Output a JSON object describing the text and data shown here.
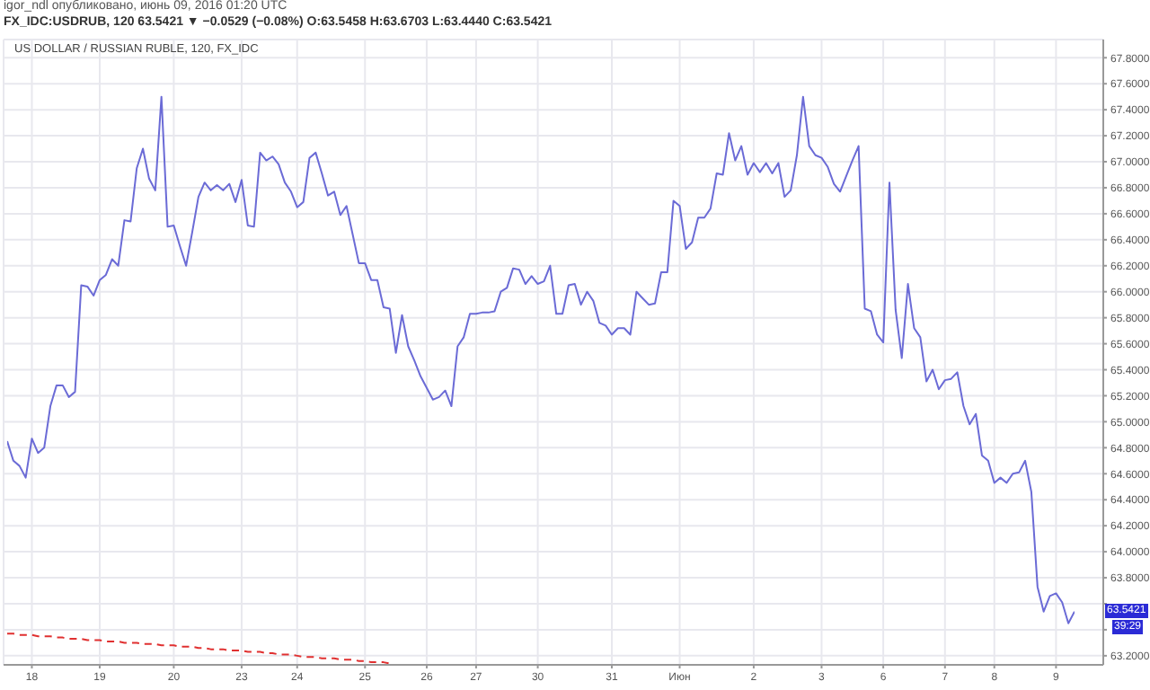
{
  "chart_data": {
    "type": "line",
    "title": "US DOLLAR / RUSSIAN RUBLE, 120, FX_IDC",
    "subtitle": "FX_IDC:USDRUB, 120 63.5421 ▼ −0.0529 (−0.08%) O:63.5458 H:63.6703 L:63.4440 C:63.5421",
    "annotations": [
      "igor_ndl опубликовано, июнь 09, 2016 01:20 UTC",
      "63.5421",
      "39:29"
    ],
    "categories": [
      null,
      null,
      null,
      null,
      "18",
      null,
      null,
      null,
      null,
      null,
      null,
      null,
      null,
      null,
      null,
      "19",
      null,
      null,
      null,
      null,
      null,
      null,
      null,
      null,
      null,
      null,
      null,
      "20",
      null,
      null,
      null,
      null,
      null,
      null,
      null,
      null,
      null,
      null,
      "23",
      null,
      null,
      null,
      null,
      null,
      null,
      null,
      null,
      "24",
      null,
      null,
      null,
      null,
      null,
      null,
      null,
      null,
      null,
      null,
      "25",
      null,
      null,
      null,
      null,
      null,
      null,
      null,
      null,
      null,
      "26",
      null,
      null,
      null,
      null,
      null,
      null,
      null,
      "27",
      null,
      null,
      null,
      null,
      null,
      null,
      null,
      null,
      null,
      "30",
      null,
      null,
      null,
      null,
      null,
      null,
      null,
      null,
      null,
      null,
      null,
      "31",
      null,
      null,
      null,
      null,
      null,
      null,
      null,
      null,
      null,
      null,
      "Июн",
      null,
      null,
      null,
      null,
      null,
      null,
      null,
      null,
      null,
      null,
      null,
      "2",
      null,
      null,
      null,
      null,
      null,
      null,
      null,
      null,
      null,
      null,
      "3",
      null,
      null,
      null,
      null,
      null,
      null,
      null,
      null,
      null,
      "6",
      null,
      null,
      null,
      null,
      null,
      null,
      null,
      null,
      null,
      "7",
      null,
      null,
      null,
      null,
      null,
      null,
      null,
      "8",
      null,
      null,
      null,
      null,
      null,
      null,
      null,
      null,
      null,
      "9",
      null,
      null,
      null
    ],
    "ylim": [
      63.13,
      67.94
    ],
    "yticks": [
      {
        "value": 63.2,
        "label": "63.2000"
      },
      {
        "value": 63.4,
        "label": null
      },
      {
        "value": 63.6,
        "label": null
      },
      {
        "value": 63.8,
        "label": "63.8000"
      },
      {
        "value": 64,
        "label": "64.0000"
      },
      {
        "value": 64.2,
        "label": "64.2000"
      },
      {
        "value": 64.4,
        "label": "64.4000"
      },
      {
        "value": 64.6,
        "label": "64.6000"
      },
      {
        "value": 64.8,
        "label": "64.8000"
      },
      {
        "value": 65,
        "label": "65.0000"
      },
      {
        "value": 65.2,
        "label": "65.2000"
      },
      {
        "value": 65.4,
        "label": "65.4000"
      },
      {
        "value": 65.6,
        "label": "65.6000"
      },
      {
        "value": 65.8,
        "label": "65.8000"
      },
      {
        "value": 66,
        "label": "66.0000"
      },
      {
        "value": 66.2,
        "label": "66.2000"
      },
      {
        "value": 66.4,
        "label": "66.4000"
      },
      {
        "value": 66.6,
        "label": "66.6000"
      },
      {
        "value": 66.8,
        "label": "66.8000"
      },
      {
        "value": 67,
        "label": "67.0000"
      },
      {
        "value": 67.2,
        "label": "67.2000"
      },
      {
        "value": 67.4,
        "label": "67.4000"
      },
      {
        "value": 67.6,
        "label": "67.6000"
      },
      {
        "value": 67.8,
        "label": "67.8000"
      }
    ],
    "grid": true,
    "marker": "none",
    "series": [
      {
        "color": "#6b6bd6",
        "line_style": "solid",
        "values": [
          64.85,
          64.7,
          64.66,
          64.57,
          64.87,
          64.76,
          64.8,
          65.12,
          65.28,
          65.28,
          65.19,
          65.23,
          66.05,
          66.04,
          65.97,
          66.09,
          66.13,
          66.25,
          66.2,
          66.55,
          66.54,
          66.95,
          67.1,
          66.87,
          66.78,
          67.5,
          66.5,
          66.51,
          66.35,
          66.2,
          66.46,
          66.73,
          66.84,
          66.78,
          66.82,
          66.78,
          66.83,
          66.69,
          66.86,
          66.51,
          66.5,
          67.07,
          67.01,
          67.04,
          66.98,
          66.84,
          66.77,
          66.65,
          66.69,
          67.03,
          67.07,
          66.91,
          66.74,
          66.77,
          66.59,
          66.66,
          66.44,
          66.22,
          66.22,
          66.09,
          66.09,
          65.88,
          65.87,
          65.53,
          65.82,
          65.58,
          65.47,
          65.35,
          65.26,
          65.17,
          65.19,
          65.24,
          65.12,
          65.58,
          65.65,
          65.83,
          65.83,
          65.84,
          65.84,
          65.85,
          66,
          66.03,
          66.18,
          66.17,
          66.06,
          66.12,
          66.06,
          66.08,
          66.2,
          65.83,
          65.83,
          66.05,
          66.06,
          65.9,
          66,
          65.93,
          65.76,
          65.74,
          65.67,
          65.72,
          65.72,
          65.67,
          66,
          65.95,
          65.9,
          65.91,
          66.15,
          66.15,
          66.7,
          66.66,
          66.33,
          66.38,
          66.57,
          66.57,
          66.64,
          66.91,
          66.9,
          67.22,
          67.01,
          67.12,
          66.9,
          66.99,
          66.92,
          66.99,
          66.91,
          66.99,
          66.73,
          66.78,
          67.05,
          67.5,
          67.12,
          67.05,
          67.03,
          66.96,
          66.83,
          66.77,
          66.89,
          67.01,
          67.12,
          65.87,
          65.85,
          65.67,
          65.61,
          66.84,
          65.86,
          65.49,
          66.06,
          65.72,
          65.65,
          65.31,
          65.4,
          65.25,
          65.32,
          65.33,
          65.38,
          65.12,
          64.98,
          65.06,
          64.74,
          64.7,
          64.53,
          64.57,
          64.53,
          64.6,
          64.61,
          64.7,
          64.46,
          63.73,
          63.54,
          63.66,
          63.68,
          63.61,
          63.45,
          63.54
        ]
      },
      {
        "color": "#e03030",
        "line_style": "dashed",
        "values": [
          63.37,
          63.37,
          63.36,
          63.36,
          63.36,
          63.35,
          63.35,
          63.35,
          63.34,
          63.34,
          63.33,
          63.33,
          63.33,
          63.32,
          63.32,
          63.32,
          63.31,
          63.31,
          63.31,
          63.3,
          63.3,
          63.3,
          63.29,
          63.29,
          63.29,
          63.28,
          63.28,
          63.28,
          63.27,
          63.27,
          63.27,
          63.26,
          63.26,
          63.25,
          63.25,
          63.25,
          63.24,
          63.24,
          63.24,
          63.23,
          63.23,
          63.23,
          63.22,
          63.22,
          63.21,
          63.21,
          63.21,
          63.2,
          63.19,
          63.19,
          63.19,
          63.18,
          63.18,
          63.18,
          63.17,
          63.17,
          63.17,
          63.16,
          63.16,
          63.15,
          63.15,
          63.15,
          63.14,
          null,
          null,
          null,
          null,
          null,
          null,
          null,
          null,
          null,
          null,
          null,
          null,
          null,
          null,
          null,
          null,
          null,
          null,
          null,
          null,
          null,
          null,
          null,
          null,
          null,
          null,
          null,
          null,
          null,
          null,
          null,
          null,
          null,
          null,
          null,
          null,
          null,
          null,
          null,
          null,
          null,
          null,
          null,
          null,
          null,
          null,
          null,
          null,
          null,
          null,
          null,
          null,
          null,
          null,
          null,
          null,
          null,
          null,
          null,
          null,
          null,
          null,
          null,
          null,
          null,
          null,
          null,
          null,
          null,
          null,
          null,
          null,
          null,
          null,
          null,
          null,
          null,
          null,
          null,
          null,
          null,
          null,
          null,
          null,
          null,
          null,
          null,
          null,
          null,
          null,
          null,
          null,
          null,
          null,
          null,
          null,
          null,
          null,
          null,
          null,
          null,
          null,
          null,
          null,
          null,
          null,
          null,
          null,
          null,
          null,
          null
        ]
      }
    ]
  }
}
